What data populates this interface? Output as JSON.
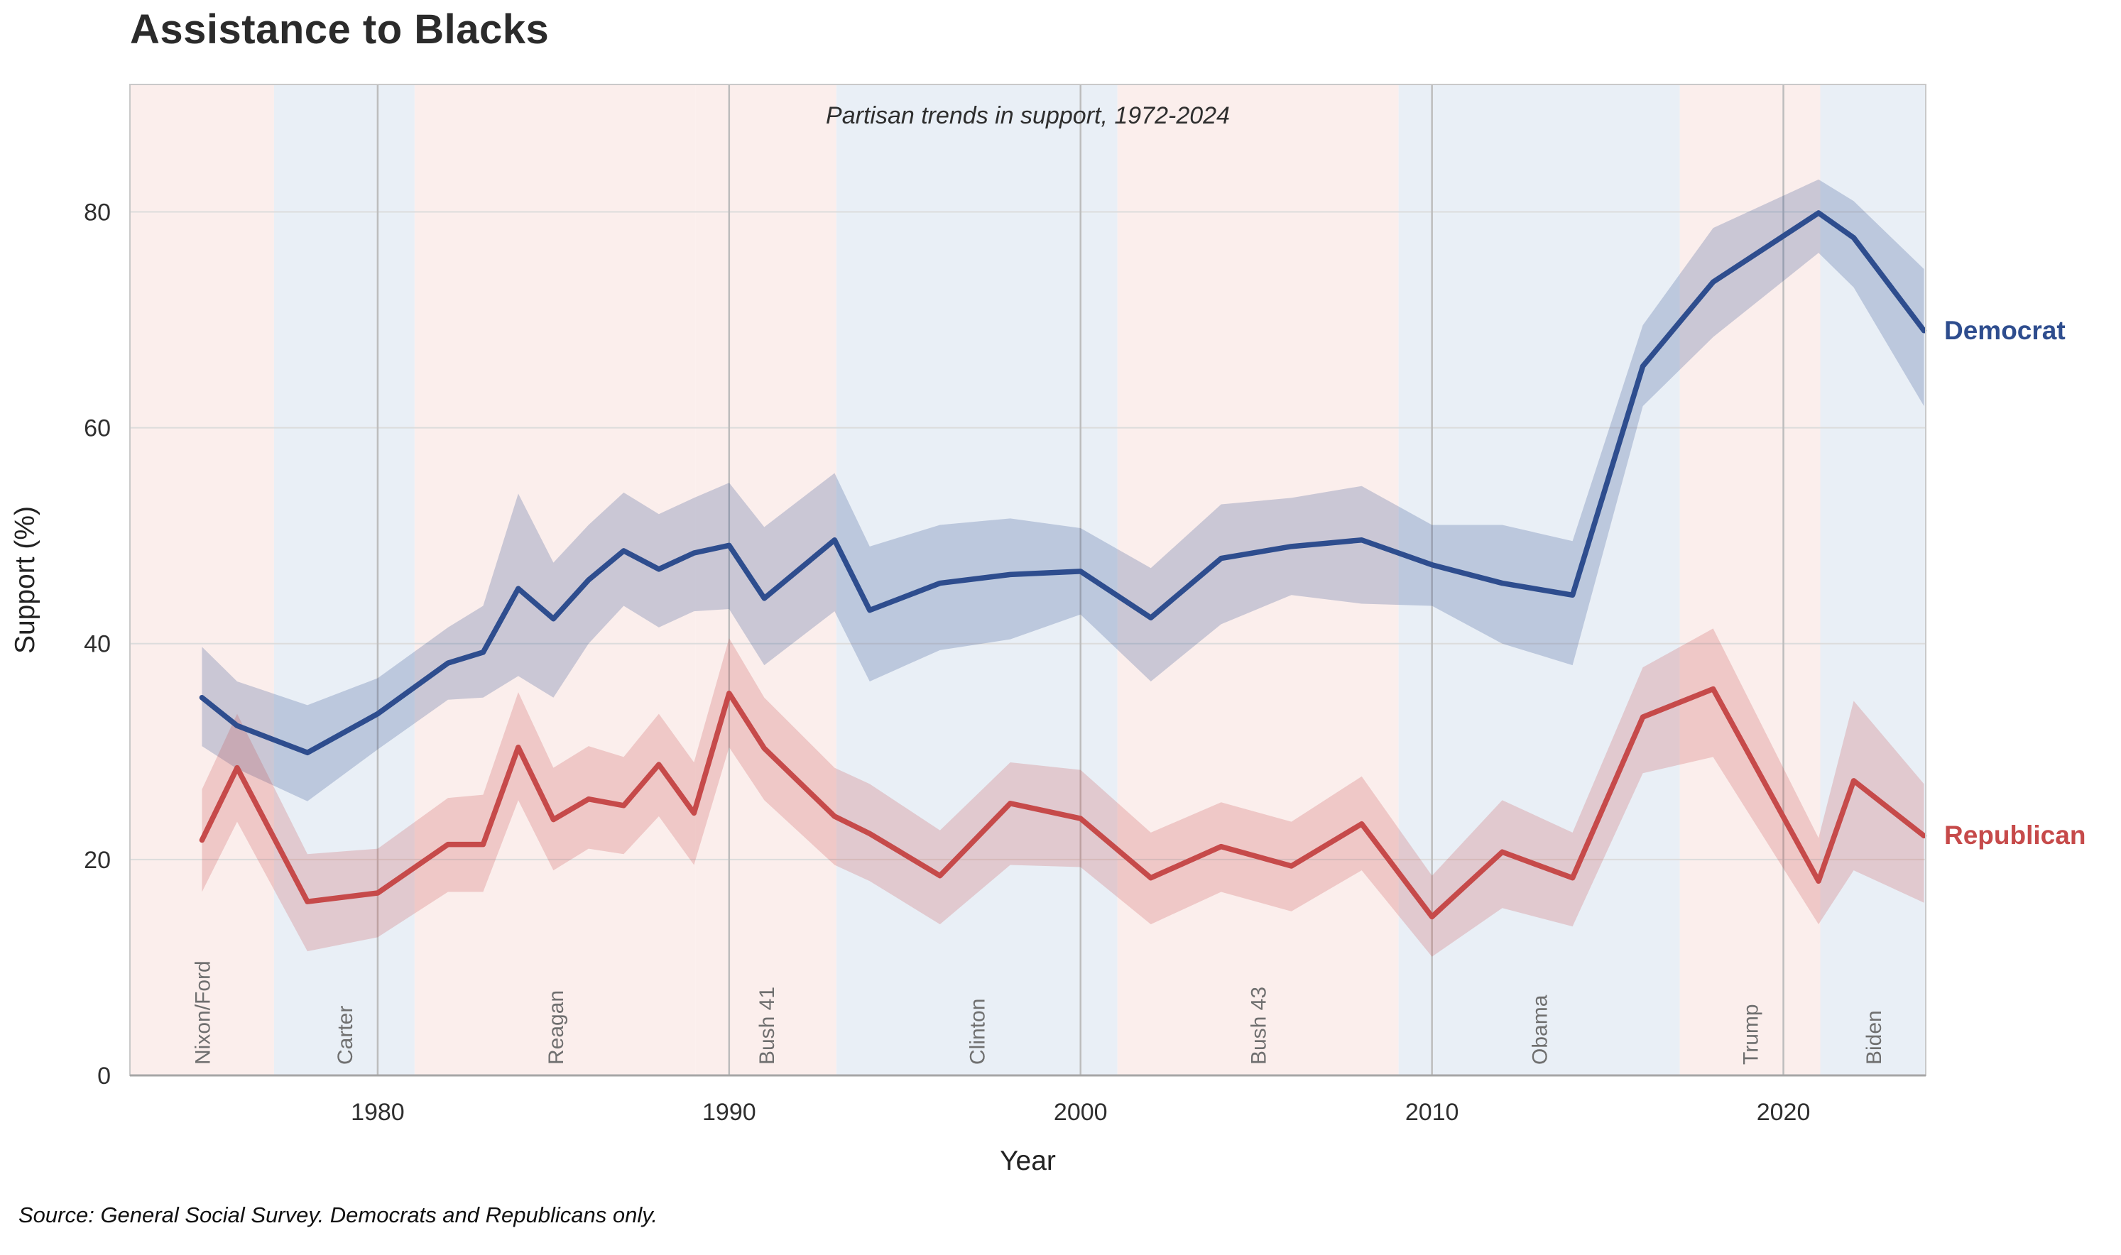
{
  "title": "Assistance to Blacks",
  "subtitle": "Partisan trends in support, 1972-2024",
  "source_note": "Source: General Social Survey. Democrats and Republicans only.",
  "series_labels": {
    "democrat": "Democrat",
    "republican": "Republican"
  },
  "colors": {
    "democrat_line": "#2e4d8e",
    "republican_line": "#c64a4a",
    "democrat_band": "rgba(46,77,142,0.24)",
    "republican_band": "rgba(198,70,70,0.22)",
    "era_republican": "#fbeeec",
    "era_democrat": "#e9eff6",
    "gridline": "#dcdcdc",
    "decade_line": "#bdbdbd",
    "spine": "#c9c9c9",
    "axis_line": "#a6a6a6",
    "tick_text": "#2f2f2f",
    "president_text": "#6f6f6f",
    "title_text": "#2b2b2b"
  },
  "chart_data": {
    "type": "line",
    "title": "Assistance to Blacks",
    "subtitle": "Partisan trends in support, 1972-2024",
    "xlabel": "Year",
    "ylabel": "Support (%)",
    "xlim": [
      1972.95,
      2024.05
    ],
    "ylim": [
      0,
      91.8
    ],
    "x_ticks": [
      1980,
      1990,
      2000,
      2010,
      2020
    ],
    "y_ticks": [
      0,
      20,
      40,
      60,
      80
    ],
    "grid": true,
    "legend_position": "right-edge-labels",
    "years": [
      1975,
      1976,
      1978,
      1980,
      1982,
      1983,
      1984,
      1985,
      1986,
      1987,
      1988,
      1989,
      1990,
      1991,
      1993,
      1994,
      1996,
      1998,
      2000,
      2002,
      2004,
      2006,
      2008,
      2010,
      2012,
      2014,
      2016,
      2018,
      2021,
      2022,
      2024
    ],
    "series": [
      {
        "name": "Democrat",
        "values": [
          35.0,
          32.4,
          29.9,
          33.5,
          38.2,
          39.2,
          45.1,
          42.3,
          45.9,
          48.6,
          46.9,
          48.4,
          49.1,
          44.2,
          49.6,
          43.1,
          45.6,
          46.4,
          46.7,
          42.4,
          47.9,
          49.0,
          49.6,
          47.3,
          45.6,
          44.5,
          65.7,
          73.5,
          79.9,
          77.6,
          69.0
        ],
        "ci_low": [
          30.5,
          28.4,
          25.4,
          30.2,
          34.8,
          35.0,
          37.0,
          35.0,
          40.0,
          43.5,
          41.5,
          43.0,
          43.2,
          38.0,
          43.0,
          36.5,
          39.4,
          40.4,
          42.7,
          36.5,
          41.8,
          44.5,
          43.7,
          43.5,
          40.0,
          38.0,
          62.0,
          68.4,
          76.2,
          73.0,
          62.0
        ],
        "ci_high": [
          39.7,
          36.5,
          34.3,
          36.8,
          41.5,
          43.5,
          53.9,
          47.5,
          51.0,
          54.0,
          52.0,
          53.5,
          54.9,
          50.8,
          55.8,
          49.0,
          51.0,
          51.6,
          50.7,
          47.0,
          52.9,
          53.5,
          54.6,
          51.0,
          51.0,
          49.5,
          69.5,
          78.5,
          83.0,
          81.0,
          74.7
        ]
      },
      {
        "name": "Republican",
        "values": [
          21.8,
          28.5,
          16.1,
          16.9,
          21.4,
          21.4,
          30.4,
          23.7,
          25.6,
          25.0,
          28.8,
          24.3,
          35.4,
          30.3,
          24.0,
          22.4,
          18.5,
          25.2,
          23.8,
          18.3,
          21.2,
          19.4,
          23.3,
          14.7,
          20.7,
          18.3,
          33.2,
          35.8,
          18.0,
          27.3,
          22.2
        ],
        "ci_low": [
          17.0,
          23.5,
          11.5,
          12.8,
          17.0,
          17.0,
          25.5,
          19.0,
          21.0,
          20.5,
          24.0,
          19.5,
          30.4,
          25.5,
          19.5,
          18.0,
          14.0,
          19.5,
          19.3,
          14.0,
          17.0,
          15.2,
          19.0,
          11.0,
          15.5,
          13.8,
          28.0,
          29.5,
          14.0,
          19.0,
          16.0
        ],
        "ci_high": [
          26.5,
          33.5,
          20.5,
          21.0,
          25.7,
          26.0,
          35.5,
          28.5,
          30.5,
          29.5,
          33.5,
          29.0,
          40.5,
          35.0,
          28.5,
          27.0,
          22.7,
          29.0,
          28.3,
          22.5,
          25.3,
          23.5,
          27.7,
          18.5,
          25.5,
          22.5,
          37.8,
          41.4,
          22.0,
          34.7,
          27.0
        ]
      }
    ],
    "eras": [
      {
        "label": "Nixon/Ford",
        "party": "R",
        "start": 1972.95,
        "end": 1977.05
      },
      {
        "label": "Carter",
        "party": "D",
        "start": 1977.05,
        "end": 1981.05
      },
      {
        "label": "Reagan",
        "party": "R",
        "start": 1981.05,
        "end": 1989.05
      },
      {
        "label": "Bush 41",
        "party": "R",
        "start": 1989.05,
        "end": 1993.05
      },
      {
        "label": "Clinton",
        "party": "D",
        "start": 1993.05,
        "end": 2001.05
      },
      {
        "label": "Bush 43",
        "party": "R",
        "start": 2001.05,
        "end": 2009.05
      },
      {
        "label": "Obama",
        "party": "D",
        "start": 2009.05,
        "end": 2017.05
      },
      {
        "label": "Trump",
        "party": "R",
        "start": 2017.05,
        "end": 2021.05
      },
      {
        "label": "Biden",
        "party": "D",
        "start": 2021.05,
        "end": 2024.05
      }
    ]
  }
}
